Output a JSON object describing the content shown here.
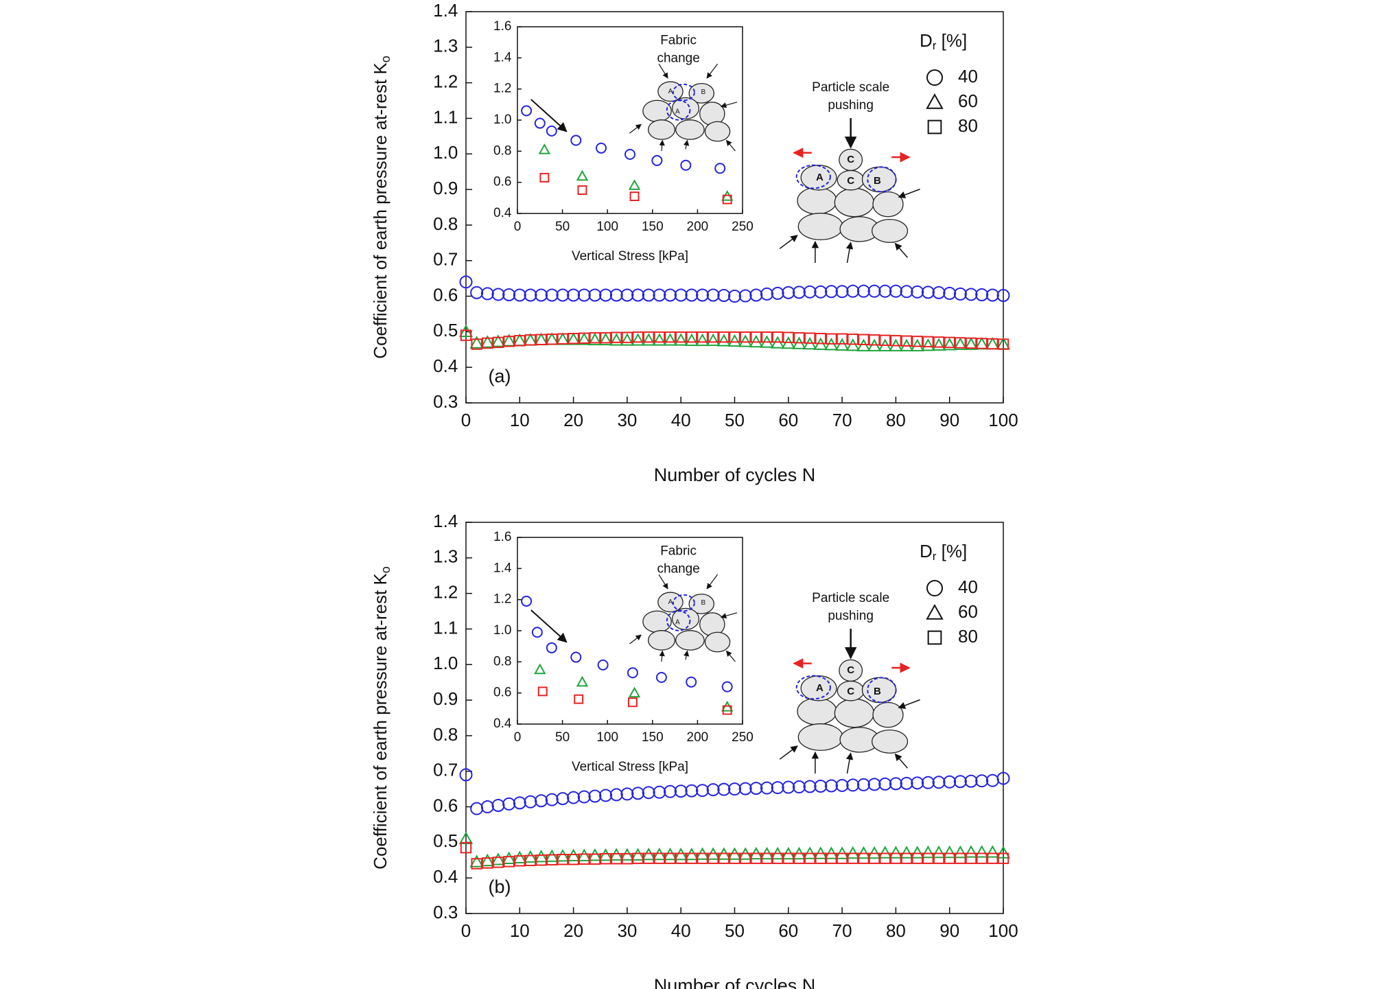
{
  "chart_data": [
    {
      "type": "scatter",
      "panel_label": "(a)",
      "x_label": "Number of cycles N",
      "y_label": [
        "Coefficient  of earth pressure at-rest  K",
        "o"
      ],
      "xlim": [
        0,
        100
      ],
      "xticks": [
        0,
        10,
        20,
        30,
        40,
        50,
        60,
        70,
        80,
        90,
        100
      ],
      "ylim": [
        0.3,
        1.4
      ],
      "yticks": [
        0.3,
        0.4,
        0.5,
        0.6,
        0.7,
        0.8,
        0.9,
        {
          "value": 1,
          "label": "1.0"
        },
        1.1,
        1.2,
        1.3,
        1.4
      ],
      "legend_title": [
        "D",
        "r",
        " [%]"
      ],
      "legend": "top right",
      "x": [
        0,
        2,
        4,
        6,
        8,
        10,
        12,
        14,
        16,
        18,
        20,
        22,
        24,
        26,
        28,
        30,
        32,
        34,
        36,
        38,
        40,
        42,
        44,
        46,
        48,
        50,
        52,
        54,
        56,
        58,
        60,
        62,
        64,
        66,
        68,
        70,
        72,
        74,
        76,
        78,
        80,
        82,
        84,
        86,
        88,
        90,
        92,
        94,
        96,
        98,
        100
      ],
      "series": [
        {
          "name": "40",
          "marker": "circle",
          "color": "#2424e0",
          "values": [
            0.64,
            0.61,
            0.607,
            0.605,
            0.604,
            0.603,
            0.603,
            0.603,
            0.603,
            0.603,
            0.603,
            0.603,
            0.603,
            0.603,
            0.603,
            0.603,
            0.603,
            0.603,
            0.603,
            0.603,
            0.603,
            0.603,
            0.603,
            0.603,
            0.602,
            0.6,
            0.601,
            0.603,
            0.606,
            0.608,
            0.61,
            0.611,
            0.612,
            0.612,
            0.613,
            0.613,
            0.614,
            0.614,
            0.614,
            0.614,
            0.614,
            0.613,
            0.612,
            0.611,
            0.61,
            0.608,
            0.606,
            0.605,
            0.604,
            0.603,
            0.602
          ]
        },
        {
          "name": "60",
          "marker": "triangle",
          "color": "#1fa33a",
          "values": [
            0.5,
            0.468,
            0.47,
            0.472,
            0.474,
            0.475,
            0.476,
            0.477,
            0.478,
            0.478,
            0.478,
            0.478,
            0.477,
            0.477,
            0.476,
            0.476,
            0.476,
            0.476,
            0.476,
            0.476,
            0.476,
            0.475,
            0.475,
            0.475,
            0.474,
            0.473,
            0.472,
            0.471,
            0.47,
            0.468,
            0.467,
            0.466,
            0.465,
            0.464,
            0.463,
            0.462,
            0.461,
            0.46,
            0.46,
            0.46,
            0.46,
            0.46,
            0.46,
            0.461,
            0.462,
            0.463,
            0.464,
            0.464,
            0.465,
            0.465,
            0.465
          ]
        },
        {
          "name": "80",
          "marker": "square",
          "color": "#e82222",
          "values": [
            0.49,
            0.465,
            0.468,
            0.47,
            0.473,
            0.475,
            0.477,
            0.478,
            0.479,
            0.48,
            0.481,
            0.482,
            0.483,
            0.483,
            0.484,
            0.484,
            0.485,
            0.485,
            0.485,
            0.485,
            0.485,
            0.485,
            0.485,
            0.485,
            0.485,
            0.485,
            0.485,
            0.485,
            0.485,
            0.485,
            0.484,
            0.483,
            0.482,
            0.481,
            0.48,
            0.48,
            0.479,
            0.478,
            0.477,
            0.476,
            0.475,
            0.474,
            0.473,
            0.472,
            0.471,
            0.47,
            0.469,
            0.468,
            0.467,
            0.466,
            0.465
          ]
        }
      ],
      "inset": {
        "type": "scatter",
        "x_label": "Vertical Stress [kPa]",
        "xlim": [
          0,
          250
        ],
        "xticks": [
          0,
          50,
          100,
          150,
          200,
          250
        ],
        "ylim": [
          0.4,
          1.6
        ],
        "yticks": [
          0.4,
          0.6,
          0.8,
          {
            "value": 1,
            "label": "1.0"
          },
          1.2,
          1.4,
          1.6
        ],
        "series": [
          {
            "marker": "circle",
            "color": "#2424e0",
            "x": [
              10,
              25,
              38,
              65,
              93,
              125,
              155,
              187,
              225
            ],
            "values": [
              1.06,
              0.98,
              0.93,
              0.87,
              0.82,
              0.78,
              0.74,
              0.71,
              0.69
            ]
          },
          {
            "marker": "triangle",
            "color": "#1fa33a",
            "x": [
              30,
              72,
              130,
              233
            ],
            "values": [
              0.81,
              0.64,
              0.58,
              0.51
            ]
          },
          {
            "marker": "square",
            "color": "#e82222",
            "x": [
              30,
              72,
              130,
              233
            ],
            "values": [
              0.63,
              0.55,
              0.51,
              0.49
            ]
          }
        ]
      },
      "annotations": {
        "particle": [
          "Particle scale",
          "pushing"
        ],
        "particle_letters": [
          "C",
          "A",
          "C",
          "B"
        ],
        "fabric": [
          "Fabric",
          "change"
        ],
        "fabric_letters": [
          "A",
          "B",
          "A"
        ]
      }
    },
    {
      "type": "scatter",
      "panel_label": "(b)",
      "x_label": "Number of cycles N",
      "y_label": [
        "Coefficient  of earth pressure at-rest  K",
        "o"
      ],
      "xlim": [
        0,
        100
      ],
      "xticks": [
        0,
        10,
        20,
        30,
        40,
        50,
        60,
        70,
        80,
        90,
        100
      ],
      "ylim": [
        0.3,
        1.4
      ],
      "yticks": [
        0.3,
        0.4,
        0.5,
        0.6,
        0.7,
        0.8,
        0.9,
        {
          "value": 1,
          "label": "1.0"
        },
        1.1,
        1.2,
        1.3,
        1.4
      ],
      "legend_title": [
        "D",
        "r",
        " [%]"
      ],
      "legend": "top right",
      "x": [
        0,
        2,
        4,
        6,
        8,
        10,
        12,
        14,
        16,
        18,
        20,
        22,
        24,
        26,
        28,
        30,
        32,
        34,
        36,
        38,
        40,
        42,
        44,
        46,
        48,
        50,
        52,
        54,
        56,
        58,
        60,
        62,
        64,
        66,
        68,
        70,
        72,
        74,
        76,
        78,
        80,
        82,
        84,
        86,
        88,
        90,
        92,
        94,
        96,
        98,
        100
      ],
      "series": [
        {
          "name": "40",
          "marker": "circle",
          "color": "#2424e0",
          "values": [
            0.69,
            0.595,
            0.6,
            0.604,
            0.608,
            0.611,
            0.614,
            0.617,
            0.62,
            0.623,
            0.626,
            0.628,
            0.63,
            0.632,
            0.634,
            0.636,
            0.638,
            0.64,
            0.641,
            0.643,
            0.644,
            0.645,
            0.646,
            0.648,
            0.649,
            0.65,
            0.651,
            0.652,
            0.653,
            0.654,
            0.655,
            0.656,
            0.657,
            0.658,
            0.659,
            0.66,
            0.661,
            0.662,
            0.663,
            0.664,
            0.665,
            0.666,
            0.667,
            0.668,
            0.669,
            0.67,
            0.671,
            0.672,
            0.673,
            0.674,
            0.68
          ]
        },
        {
          "name": "60",
          "marker": "triangle",
          "color": "#1fa33a",
          "values": [
            0.51,
            0.445,
            0.448,
            0.451,
            0.454,
            0.456,
            0.458,
            0.459,
            0.46,
            0.461,
            0.462,
            0.462,
            0.463,
            0.463,
            0.464,
            0.464,
            0.464,
            0.465,
            0.465,
            0.465,
            0.465,
            0.465,
            0.466,
            0.466,
            0.466,
            0.466,
            0.466,
            0.467,
            0.467,
            0.467,
            0.467,
            0.467,
            0.468,
            0.468,
            0.468,
            0.468,
            0.469,
            0.469,
            0.469,
            0.47,
            0.47,
            0.47,
            0.47,
            0.471,
            0.471,
            0.471,
            0.471,
            0.472,
            0.472,
            0.472,
            0.47
          ]
        },
        {
          "name": "80",
          "marker": "square",
          "color": "#e82222",
          "values": [
            0.485,
            0.44,
            0.442,
            0.444,
            0.446,
            0.448,
            0.449,
            0.45,
            0.451,
            0.452,
            0.452,
            0.453,
            0.453,
            0.454,
            0.454,
            0.454,
            0.455,
            0.455,
            0.455,
            0.455,
            0.455,
            0.455,
            0.455,
            0.455,
            0.455,
            0.455,
            0.455,
            0.455,
            0.455,
            0.455,
            0.455,
            0.455,
            0.455,
            0.455,
            0.455,
            0.455,
            0.455,
            0.455,
            0.455,
            0.455,
            0.455,
            0.455,
            0.455,
            0.455,
            0.455,
            0.455,
            0.455,
            0.455,
            0.455,
            0.455,
            0.455
          ]
        }
      ],
      "inset": {
        "type": "scatter",
        "x_label": "Vertical Stress [kPa]",
        "xlim": [
          0,
          250
        ],
        "xticks": [
          0,
          50,
          100,
          150,
          200,
          250
        ],
        "ylim": [
          0.4,
          1.6
        ],
        "yticks": [
          0.4,
          0.6,
          0.8,
          {
            "value": 1,
            "label": "1.0"
          },
          1.2,
          1.4,
          1.6
        ],
        "series": [
          {
            "marker": "circle",
            "color": "#2424e0",
            "x": [
              10,
              22,
              38,
              65,
              95,
              128,
              160,
              193,
              233
            ],
            "values": [
              1.19,
              0.99,
              0.89,
              0.83,
              0.78,
              0.73,
              0.7,
              0.67,
              0.64
            ]
          },
          {
            "marker": "triangle",
            "color": "#1fa33a",
            "x": [
              25,
              72,
              130,
              233
            ],
            "values": [
              0.75,
              0.67,
              0.6,
              0.51
            ]
          },
          {
            "marker": "square",
            "color": "#e82222",
            "x": [
              28,
              68,
              128,
              233
            ],
            "values": [
              0.61,
              0.56,
              0.54,
              0.49
            ]
          }
        ]
      },
      "annotations": {
        "particle": [
          "Particle scale",
          "pushing"
        ],
        "particle_letters": [
          "C",
          "A",
          "C",
          "B"
        ],
        "fabric": [
          "Fabric",
          "change"
        ],
        "fabric_letters": [
          "A",
          "B",
          "A"
        ]
      }
    }
  ]
}
